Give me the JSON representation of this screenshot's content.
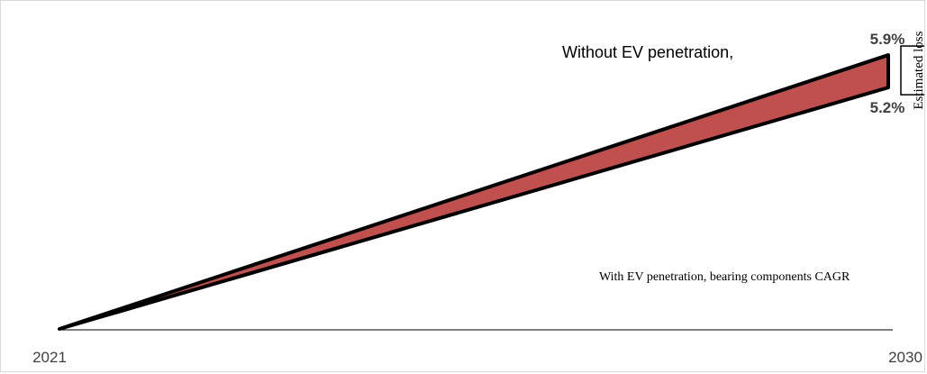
{
  "chart_data": {
    "type": "area",
    "x": [
      "2021",
      "2030"
    ],
    "series": [
      {
        "name": "",
        "values": [
          0,
          5.9
        ]
      },
      {
        "name": "",
        "values": [
          0,
          5.2
        ]
      }
    ],
    "data_labels": [
      "5.9%",
      "5.2%"
    ],
    "ylim": [
      0,
      6.6
    ],
    "fill_color": "#c0504d",
    "stroke_color": "#000000",
    "grid": false,
    "annotations": {
      "top_text": "Without EV penetration,",
      "bottom_text": "With EV penetration, bearing components CAGR",
      "bracket_label": "Estimated loss"
    }
  }
}
